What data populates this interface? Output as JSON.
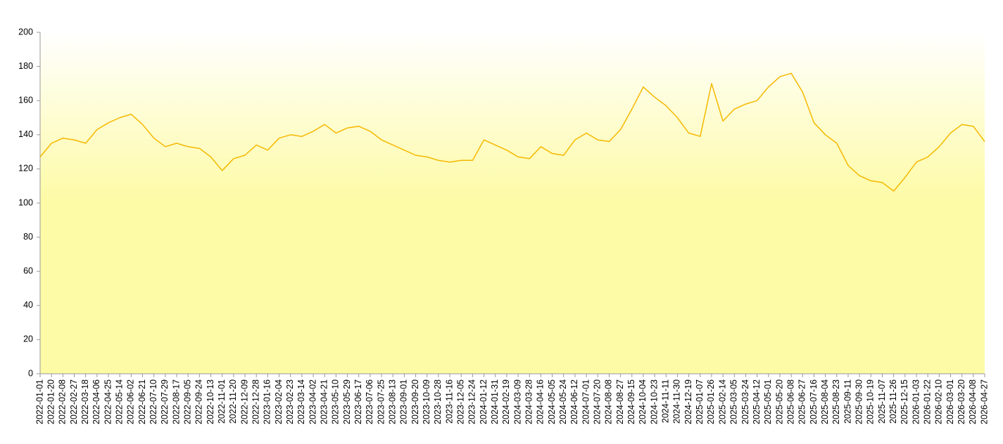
{
  "chart_data": {
    "type": "line",
    "categories": [
      "2022-01-01",
      "2022-01-20",
      "2022-02-08",
      "2022-02-27",
      "2022-03-18",
      "2022-04-06",
      "2022-04-25",
      "2022-05-14",
      "2022-06-02",
      "2022-06-21",
      "2022-07-10",
      "2022-07-29",
      "2022-08-17",
      "2022-09-05",
      "2022-09-24",
      "2022-10-13",
      "2022-11-01",
      "2022-11-20",
      "2022-12-09",
      "2022-12-28",
      "2023-01-16",
      "2023-02-04",
      "2023-02-23",
      "2023-03-14",
      "2023-04-02",
      "2023-04-21",
      "2023-05-10",
      "2023-05-29",
      "2023-06-17",
      "2023-07-06",
      "2023-07-25",
      "2023-08-13",
      "2023-09-01",
      "2023-09-20",
      "2023-10-09",
      "2023-10-28",
      "2023-11-16",
      "2023-12-05",
      "2023-12-24",
      "2024-01-12",
      "2024-01-31",
      "2024-02-19",
      "2024-03-09",
      "2024-03-28",
      "2024-04-16",
      "2024-05-05",
      "2024-05-24",
      "2024-06-12",
      "2024-07-01",
      "2024-07-20",
      "2024-08-08",
      "2024-08-27",
      "2024-09-15",
      "2024-10-04",
      "2024-10-23",
      "2024-11-11",
      "2024-11-30",
      "2024-12-19",
      "2025-01-07",
      "2025-01-26",
      "2025-02-14",
      "2025-03-05",
      "2025-03-24",
      "2025-04-12",
      "2025-05-01",
      "2025-05-20",
      "2025-06-08",
      "2025-06-27",
      "2025-07-16",
      "2025-08-04",
      "2025-08-23",
      "2025-09-11",
      "2025-09-30",
      "2025-10-19",
      "2025-11-07",
      "2025-11-26",
      "2025-12-15",
      "2026-01-03",
      "2026-01-22",
      "2026-02-10",
      "2026-03-01",
      "2026-03-20",
      "2026-04-08",
      "2026-04-27"
    ],
    "values": [
      127,
      135,
      138,
      137,
      135,
      143,
      147,
      150,
      152,
      146,
      138,
      133,
      135,
      133,
      132,
      127,
      119,
      126,
      128,
      134,
      131,
      138,
      140,
      139,
      142,
      146,
      141,
      144,
      145,
      142,
      137,
      134,
      131,
      128,
      127,
      125,
      124,
      125,
      125,
      137,
      134,
      131,
      127,
      126,
      133,
      129,
      128,
      137,
      141,
      137,
      136,
      143,
      155,
      168,
      162,
      157,
      150,
      141,
      139,
      170,
      148,
      155,
      158,
      160,
      168,
      174,
      176,
      165,
      147,
      140,
      135,
      122,
      116,
      113,
      112,
      107,
      115,
      124,
      127,
      133,
      141,
      146,
      145,
      136
    ],
    "color": "#f5b800",
    "ylim": [
      0,
      200
    ],
    "yticks": [
      0,
      20,
      40,
      60,
      80,
      100,
      120,
      140,
      160,
      180,
      200
    ],
    "grid": false
  }
}
